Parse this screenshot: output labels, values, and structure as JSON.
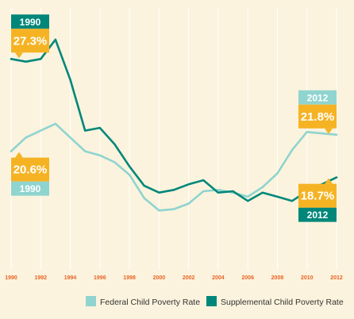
{
  "colors": {
    "background": "#fbf3dd",
    "federal": "#8fd4cf",
    "supplemental": "#00877a",
    "callout": "#f5b324",
    "tick": "#e8652a"
  },
  "chart_data": {
    "type": "line",
    "title": "",
    "xlabel": "",
    "ylabel": "",
    "x": [
      1990,
      1991,
      1992,
      1993,
      1994,
      1995,
      1996,
      1997,
      1998,
      1999,
      2000,
      2001,
      2002,
      2003,
      2004,
      2005,
      2006,
      2007,
      2008,
      2009,
      2010,
      2011,
      2012
    ],
    "xticks": [
      "1990",
      "1992",
      "1994",
      "1996",
      "1998",
      "2000",
      "2002",
      "2004",
      "2006",
      "2008",
      "2010",
      "2012"
    ],
    "xlim": [
      1990,
      2012
    ],
    "ylim": [
      12,
      31
    ],
    "grid": true,
    "legend_position": "bottom-right",
    "series": [
      {
        "name": "Federal Child Poverty Rate",
        "color": "#8fd4cf",
        "values": [
          20.6,
          21.6,
          22.1,
          22.6,
          21.6,
          20.6,
          20.3,
          19.8,
          18.9,
          17.2,
          16.3,
          16.4,
          16.8,
          17.7,
          17.8,
          17.6,
          17.3,
          18.0,
          19.0,
          20.7,
          22.0,
          21.9,
          21.8
        ]
      },
      {
        "name": "Supplemental Child Poverty Rate",
        "color": "#00877a",
        "values": [
          27.3,
          27.1,
          27.3,
          28.7,
          25.8,
          22.1,
          22.3,
          21.1,
          19.5,
          18.1,
          17.6,
          17.8,
          18.2,
          18.5,
          17.6,
          17.7,
          17.0,
          17.6,
          17.3,
          17.0,
          17.7,
          18.2,
          18.7
        ]
      }
    ],
    "annotations": [
      {
        "series": 1,
        "index": 0,
        "year": "1990",
        "value": "27.3%"
      },
      {
        "series": 0,
        "index": 0,
        "year": "1990",
        "value": "20.6%"
      },
      {
        "series": 0,
        "index": 22,
        "year": "2012",
        "value": "21.8%"
      },
      {
        "series": 1,
        "index": 22,
        "year": "2012",
        "value": "18.7%"
      }
    ]
  }
}
